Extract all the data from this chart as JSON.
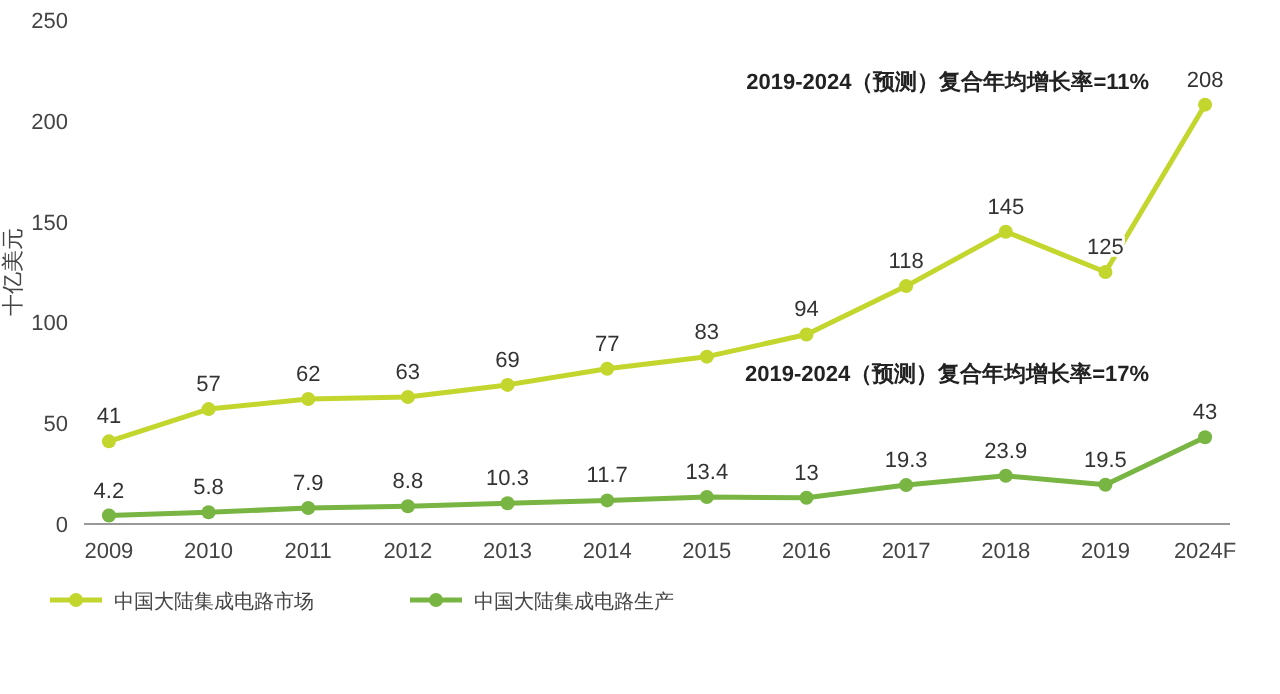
{
  "chart_data": {
    "type": "line",
    "ylabel": "十亿美元",
    "categories": [
      "2009",
      "2010",
      "2011",
      "2012",
      "2013",
      "2014",
      "2015",
      "2016",
      "2017",
      "2018",
      "2019",
      "2024F"
    ],
    "series": [
      {
        "name": "中国大陆集成电路市场",
        "color": "#c3d62e",
        "values": [
          41,
          57,
          62,
          63,
          69,
          77,
          83,
          94,
          118,
          145,
          125,
          208
        ]
      },
      {
        "name": "中国大陆集成电路生产",
        "color": "#78b542",
        "values": [
          4.2,
          5.8,
          7.9,
          8.8,
          10.3,
          11.7,
          13.4,
          13,
          19.3,
          23.9,
          19.5,
          43
        ]
      }
    ],
    "ylim": [
      0,
      250
    ],
    "yticks": [
      0,
      50,
      100,
      150,
      200,
      250
    ],
    "annotations": [
      "2019-2024（预测）复合年均增长率=11%",
      "2019-2024（预测）复合年均增长率=17%"
    ],
    "data_labels": true,
    "marker": "circle",
    "line_style": "solid",
    "grid": false,
    "legend": "bottom left"
  }
}
